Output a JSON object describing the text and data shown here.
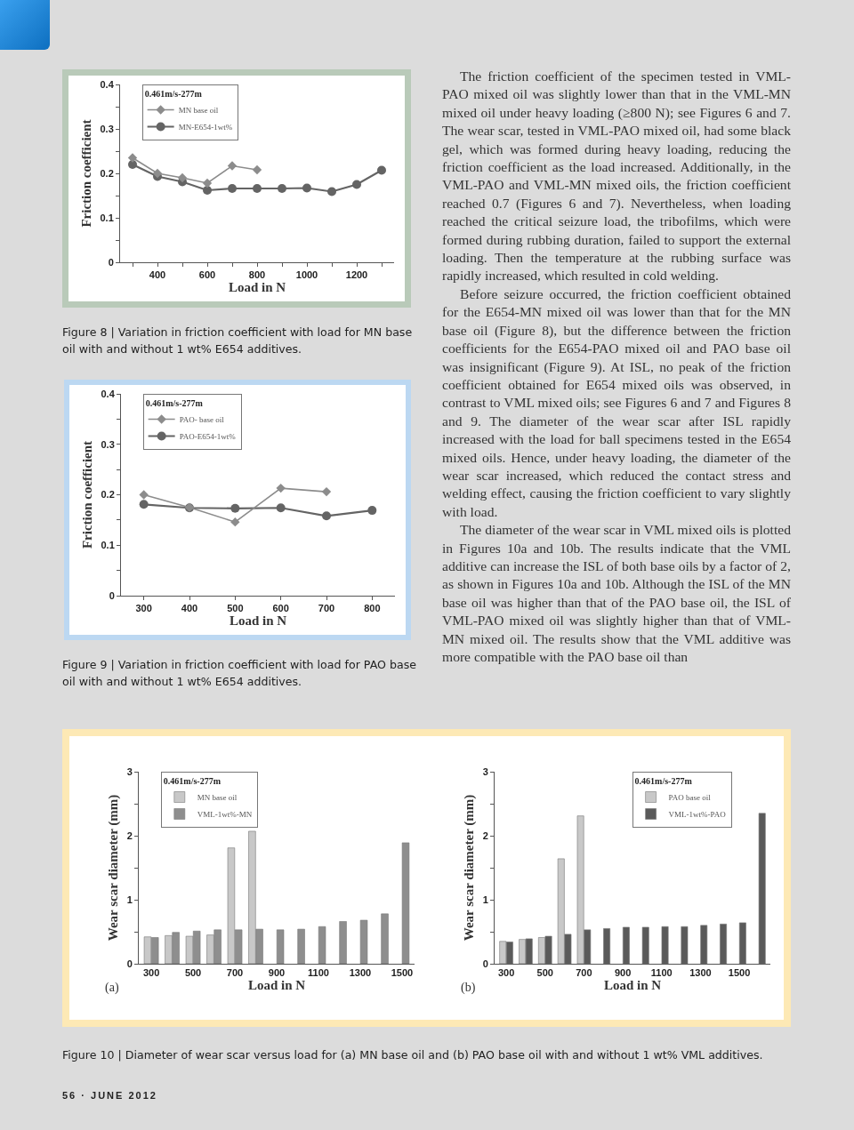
{
  "chart_data": [
    {
      "type": "line",
      "title": "Figure 8 | Variation in friction coefficient with load for MN base oil with and without 1 wt% E654 additives.",
      "xlabel": "Load in N",
      "ylabel": "Friction coefficient",
      "legend_title": "0.461m/s-277m",
      "legend": "top left",
      "xlim": [
        250,
        1350
      ],
      "xticks": [
        {
          "value": 300,
          "label": null
        },
        400,
        {
          "value": 500,
          "label": null
        },
        600,
        {
          "value": 700,
          "label": null
        },
        800,
        {
          "value": 900,
          "label": null
        },
        1000,
        {
          "value": 1100,
          "label": null
        },
        1200,
        {
          "value": 1300,
          "label": null
        }
      ],
      "ylim": [
        0,
        0.4
      ],
      "yticks": [
        0,
        {
          "value": 0.05,
          "label": null
        },
        0.1,
        {
          "value": 0.15,
          "label": null
        },
        0.2,
        {
          "value": 0.25,
          "label": null
        },
        0.3,
        {
          "value": 0.35,
          "label": null
        },
        0.4
      ],
      "series": [
        {
          "name": "MN base oil",
          "color": "#8c8c8c",
          "marker": "diamond",
          "x": [
            300,
            400,
            500,
            600,
            700,
            800
          ],
          "values": [
            0.235,
            0.2,
            0.19,
            0.178,
            0.217,
            0.208
          ]
        },
        {
          "name": "MN-E654-1wt%",
          "color": "#646464",
          "marker": "circle",
          "x": [
            300,
            400,
            500,
            600,
            700,
            800,
            900,
            1000,
            1100,
            1200,
            1300
          ],
          "values": [
            0.22,
            0.193,
            0.181,
            0.162,
            0.166,
            0.166,
            0.166,
            0.167,
            0.159,
            0.175,
            0.207
          ]
        }
      ]
    },
    {
      "type": "line",
      "title": "Figure 9 | Variation in friction coefficient with load for PAO base oil with and without 1 wt% E654 additives.",
      "xlabel": "Load in N",
      "ylabel": "Friction coefficient",
      "legend_title": "0.461m/s-277m",
      "legend": "top left",
      "xlim": [
        250,
        850
      ],
      "xticks": [
        300,
        400,
        500,
        600,
        700,
        800
      ],
      "ylim": [
        0,
        0.4
      ],
      "yticks": [
        0,
        {
          "value": 0.05,
          "label": null
        },
        0.1,
        {
          "value": 0.15,
          "label": null
        },
        0.2,
        {
          "value": 0.25,
          "label": null
        },
        0.3,
        {
          "value": 0.35,
          "label": null
        },
        0.4
      ],
      "series": [
        {
          "name": "PAO- base oil",
          "color": "#8c8c8c",
          "marker": "diamond",
          "x": [
            300,
            400,
            500,
            600,
            700
          ],
          "values": [
            0.2,
            0.175,
            0.146,
            0.213,
            0.206
          ]
        },
        {
          "name": "PAO-E654-1wt%",
          "color": "#646464",
          "marker": "circle",
          "x": [
            300,
            400,
            500,
            600,
            700,
            800
          ],
          "values": [
            0.181,
            0.174,
            0.173,
            0.174,
            0.158,
            0.169
          ]
        }
      ]
    },
    {
      "type": "other",
      "annotations": [
        "The friction coefficient of the specimen tested in VML-PAO mixed oil was slightly lower than that in the VML-MN mixed oil under heavy loading (≥800 N); see Figures 6 and 7. The wear scar, tested in VML-PAO mixed oil, had some black gel, which was formed during heavy loading, reducing the friction coefficient as the load increased. Additionally, in the VML-PAO and VML-MN mixed oils, the friction coefficient reached 0.7 (Figures 6 and 7). Nevertheless, when loading reached the critical seizure load, the tribofilms, which were formed during rubbing duration, failed to support the external loading. Then the temperature at the rubbing surface was rapidly increased, which resulted in cold welding.",
        "Before seizure occurred, the friction coefficient obtained for the E654-MN mixed oil was lower than that for the MN base oil (Figure 8), but the difference between the friction coefficients for the E654-PAO mixed oil and PAO base oil was insignificant (Figure 9). At ISL, no peak of the friction coefficient obtained for E654 mixed oils was observed, in contrast to VML mixed oils; see Figures 6 and 7 and Figures 8 and 9. The diameter of the wear scar after ISL rapidly increased with the load for ball specimens tested in the E654 mixed oils. Hence, under heavy loading, the diameter of the wear scar increased, which reduced the contact stress and welding effect, causing the friction coefficient to vary slightly with load.",
        "The diameter of the wear scar in VML mixed oils is plotted in Figures 10a and 10b. The results indicate that the VML additive can increase the ISL of both base oils by a factor of 2, as shown in Figures 10a and 10b. Although the ISL of the MN base oil was higher than that of the PAO base oil, the ISL of VML-PAO mixed oil was slightly higher than that of VML-MN mixed oil. The results show that the VML additive was more compatible with the PAO base oil than",
        "56 · JUNE 2012"
      ]
    },
    {
      "type": "bar",
      "title": "Figure 10 | Diameter of wear scar versus load for (a) MN base oil and (b) PAO base oil with and without 1 wt% VML additives.",
      "xlabel": "Load in N",
      "ylabel": "Wear scar diameter (mm)",
      "legend_title": "0.461m/s-277m",
      "legend": "top left",
      "annotations": [
        "(a)"
      ],
      "categories": [
        "300",
        null,
        "500",
        null,
        "700",
        null,
        "900",
        null,
        "1100",
        null,
        "1300",
        null,
        "1500"
      ],
      "ylim": [
        0,
        3
      ],
      "yticks": [
        0,
        {
          "value": 0.5,
          "label": null
        },
        1,
        {
          "value": 1.5,
          "label": null
        },
        2,
        {
          "value": 2.5,
          "label": null
        },
        3
      ],
      "series": [
        {
          "name": "MN base oil",
          "color": "#c8c8c8",
          "values": [
            0.42,
            0.44,
            0.43,
            0.45,
            1.81,
            2.07,
            null,
            null,
            null,
            null,
            null,
            null,
            null
          ]
        },
        {
          "name": "VML-1wt%-MN",
          "color": "#8e8e8e",
          "values": [
            0.41,
            0.49,
            0.51,
            0.53,
            0.53,
            0.54,
            0.53,
            0.54,
            0.58,
            0.66,
            0.68,
            0.78,
            1.89
          ]
        }
      ]
    },
    {
      "type": "bar",
      "xlabel": "Load in N",
      "ylabel": "Wear scar diameter (mm)",
      "legend_title": "0.461m/s-277m",
      "legend": "top right",
      "annotations": [
        "(b)"
      ],
      "categories": [
        "300",
        null,
        "500",
        null,
        "700",
        null,
        "900",
        null,
        "1100",
        null,
        "1300",
        null,
        "1500",
        null
      ],
      "ylim": [
        0,
        3
      ],
      "yticks": [
        0,
        {
          "value": 0.5,
          "label": null
        },
        1,
        {
          "value": 1.5,
          "label": null
        },
        2,
        {
          "value": 2.5,
          "label": null
        },
        3
      ],
      "series": [
        {
          "name": "PAO base oil",
          "color": "#c8c8c8",
          "values": [
            0.35,
            0.38,
            0.41,
            1.64,
            2.31,
            null,
            null,
            null,
            null,
            null,
            null,
            null,
            null,
            null
          ]
        },
        {
          "name": "VML-1wt%-PAO",
          "color": "#5a5a5a",
          "values": [
            0.34,
            0.39,
            0.43,
            0.46,
            0.53,
            0.55,
            0.57,
            0.57,
            0.58,
            0.58,
            0.6,
            0.62,
            0.64,
            2.35
          ]
        }
      ]
    }
  ]
}
